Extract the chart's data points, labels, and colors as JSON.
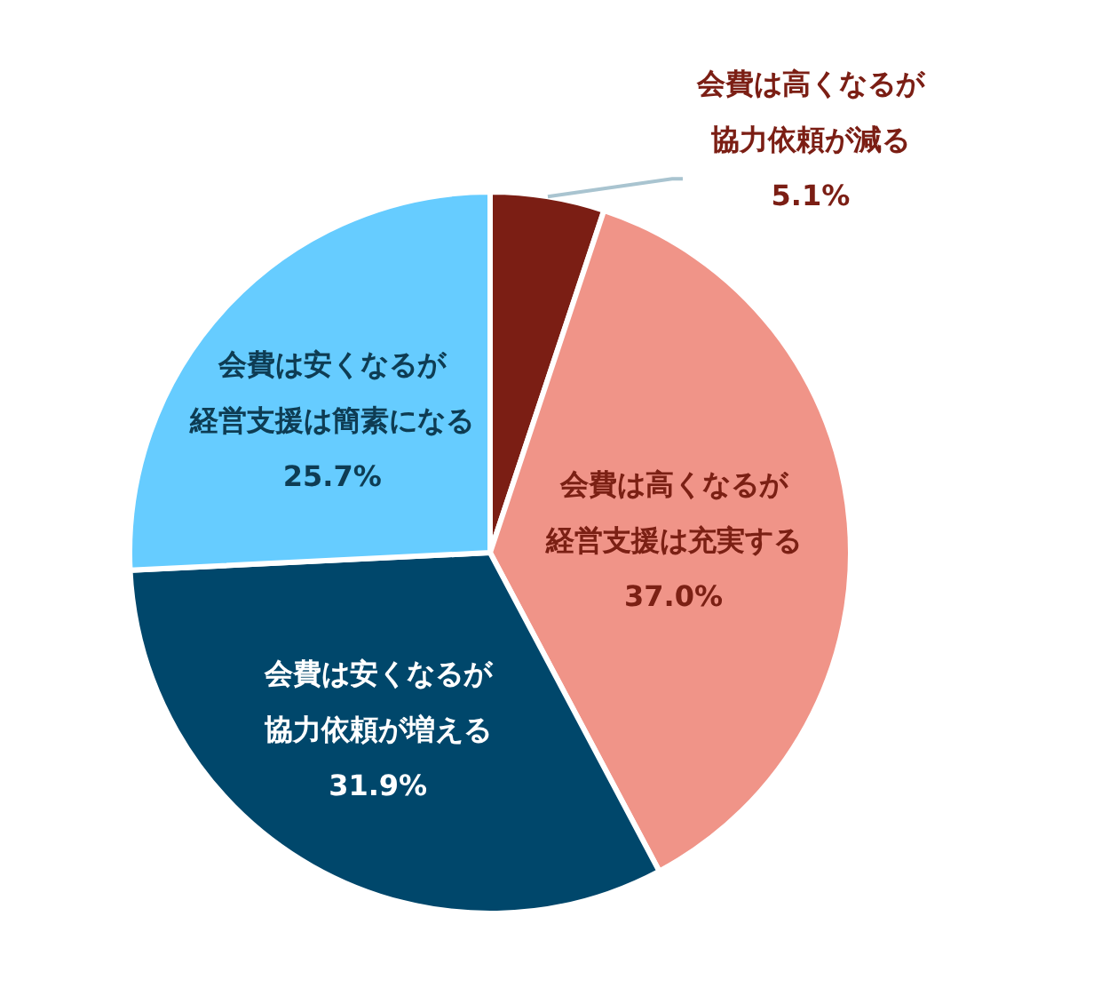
{
  "chart_data": {
    "type": "pie",
    "categories": [
      "会費は高くなるが協力依頼が減る",
      "会費は高くなるが経営支援は充実する",
      "会費は安くなるが協力依頼が増える",
      "会費は安くなるが経営支援は簡素になる"
    ],
    "values": [
      5.1,
      37.0,
      31.9,
      25.7
    ],
    "colors": [
      "#7b1e14",
      "#f09488",
      "#00476b",
      "#66ccff"
    ],
    "value_labels": [
      "5.1%",
      "37.0%",
      "31.9%",
      "25.7%"
    ]
  }
}
